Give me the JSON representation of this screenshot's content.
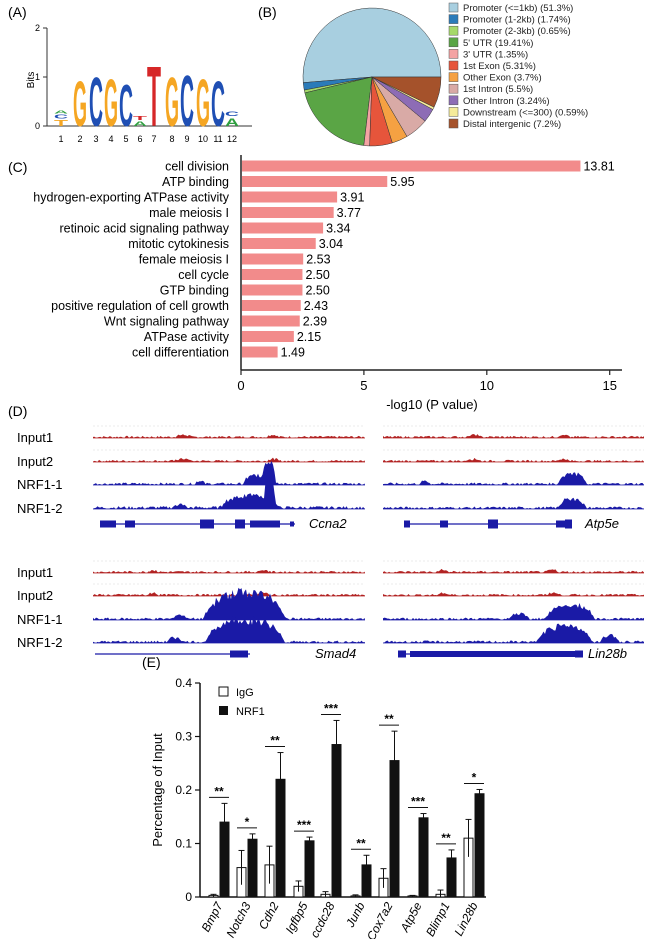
{
  "panelA": {
    "label": "(A)",
    "ylabel": "Bits",
    "yticks": [
      "0",
      "1",
      "2"
    ],
    "xticks": [
      "1",
      "2",
      "3",
      "4",
      "5",
      "6",
      "7",
      "8",
      "9",
      "10",
      "11",
      "12"
    ],
    "motif": [
      {
        "l": "T",
        "c": "#f5a623",
        "h": 0.15
      },
      {
        "l": "C",
        "c": "#1f4fb4",
        "h": 0.1
      },
      {
        "l": "A",
        "c": "#2e9e3f",
        "h": 0.08
      },
      {
        "l": "G",
        "c": "#f5a623",
        "h": 1.2
      },
      {
        "l": "C",
        "c": "#1f4fb4",
        "h": 1.3
      },
      {
        "l": "G",
        "c": "#f5a623",
        "h": 1.25
      },
      {
        "l": "C",
        "c": "#1f4fb4",
        "h": 1.1
      },
      {
        "l": "A",
        "c": "#2e9e3f",
        "h": 0.12
      },
      {
        "l": "T",
        "c": "#d62728",
        "h": 0.1
      },
      {
        "l": "T",
        "c": "#d62728",
        "h": 1.6
      },
      {
        "l": "G",
        "c": "#f5a623",
        "h": 1.3
      },
      {
        "l": "C",
        "c": "#1f4fb4",
        "h": 1.35
      },
      {
        "l": "G",
        "c": "#f5a623",
        "h": 1.25
      },
      {
        "l": "C",
        "c": "#1f4fb4",
        "h": 1.2
      },
      {
        "l": "A",
        "c": "#2e9e3f",
        "h": 0.2
      },
      {
        "l": "C",
        "c": "#1f4fb4",
        "h": 0.12
      }
    ]
  },
  "panelB": {
    "label": "(B)",
    "slices": [
      {
        "label": "Promoter (<=1kb) (51.3%)",
        "value": 51.3,
        "color": "#a8cfe0"
      },
      {
        "label": "Promoter (1-2kb) (1.74%)",
        "value": 1.74,
        "color": "#2b7bb9"
      },
      {
        "label": "Promoter (2-3kb) (0.65%)",
        "value": 0.65,
        "color": "#a6d96a"
      },
      {
        "label": "5' UTR (19.41%)",
        "value": 19.41,
        "color": "#5aa545"
      },
      {
        "label": "3' UTR (1.35%)",
        "value": 1.35,
        "color": "#f4a3a3"
      },
      {
        "label": "1st Exon (5.31%)",
        "value": 5.31,
        "color": "#e6553b"
      },
      {
        "label": "Other Exon (3.7%)",
        "value": 3.7,
        "color": "#f5a142"
      },
      {
        "label": "1st Intron (5.5%)",
        "value": 5.5,
        "color": "#d9aaa6"
      },
      {
        "label": "Other Intron (3.24%)",
        "value": 3.24,
        "color": "#8d6cb5"
      },
      {
        "label": "Downstream (<=300) (0.59%)",
        "value": 0.59,
        "color": "#f5eb9a"
      },
      {
        "label": "Distal intergenic (7.2%)",
        "value": 7.2,
        "color": "#a5522b"
      }
    ]
  },
  "panelC": {
    "label": "(C)",
    "xlabel": "-log10 (P value)",
    "xticks": [
      "0",
      "5",
      "10",
      "15"
    ],
    "xmax": 15.5,
    "bar_color": "#f28b8b",
    "terms": [
      "cell division",
      "ATP binding",
      "hydrogen-exporting ATPase activity",
      "male meiosis I",
      "retinoic acid signaling pathway",
      "mitotic cytokinesis",
      "female meiosis I",
      "cell cycle",
      "GTP binding",
      "positive regulation of cell growth",
      "Wnt signaling pathway",
      "ATPase activity",
      "cell differentiation"
    ],
    "values": [
      13.81,
      5.95,
      3.91,
      3.77,
      3.34,
      3.04,
      2.53,
      2.5,
      2.5,
      2.43,
      2.39,
      2.15,
      1.49
    ],
    "value_labels": [
      "13.81",
      "5.95",
      "3.91",
      "3.77",
      "3.34",
      "3.04",
      "2.53",
      "2.50",
      "2.50",
      "2.43",
      "2.39",
      "2.15",
      "1.49"
    ]
  },
  "panelD": {
    "label": "(D)",
    "input_color": "#b22222",
    "nrf_color": "#1a1aa6",
    "rows_top": [
      "Input1",
      "Input2",
      "NRF1-1",
      "NRF1-2"
    ],
    "rows_bottom": [
      "Input1",
      "Input2",
      "NRF1-1",
      "NRF1-2"
    ],
    "genes": [
      "Ccna2",
      "Atp5e",
      "Smad4",
      "Lin28b"
    ]
  },
  "chart_data": {
    "type": "bar",
    "label": "(E)",
    "ylabel": "Percentage of Input",
    "ylim": [
      0,
      0.4
    ],
    "yticks": [
      "0",
      "0.1",
      "0.2",
      "0.3",
      "0.4"
    ],
    "categories": [
      "Bmp7",
      "Notch3",
      "Cdh2",
      "Igfbp5",
      "ccdc28",
      "Junb",
      "Cox7a2",
      "Atp5e",
      "Blimp1",
      "Lin28b"
    ],
    "series": [
      {
        "name": "IgG",
        "values": [
          0.003,
          0.055,
          0.06,
          0.02,
          0.005,
          0.002,
          0.035,
          0.002,
          0.005,
          0.11
        ],
        "errors": [
          0.002,
          0.032,
          0.035,
          0.01,
          0.005,
          0.002,
          0.018,
          0.001,
          0.008,
          0.035
        ]
      },
      {
        "name": "NRF1",
        "values": [
          0.14,
          0.108,
          0.22,
          0.105,
          0.285,
          0.06,
          0.255,
          0.148,
          0.073,
          0.193
        ],
        "errors": [
          0.035,
          0.01,
          0.05,
          0.007,
          0.045,
          0.018,
          0.055,
          0.008,
          0.015,
          0.008
        ]
      }
    ],
    "significance": [
      "**",
      "*",
      "**",
      "***",
      "***",
      "**",
      "**",
      "***",
      "**",
      "*"
    ]
  }
}
